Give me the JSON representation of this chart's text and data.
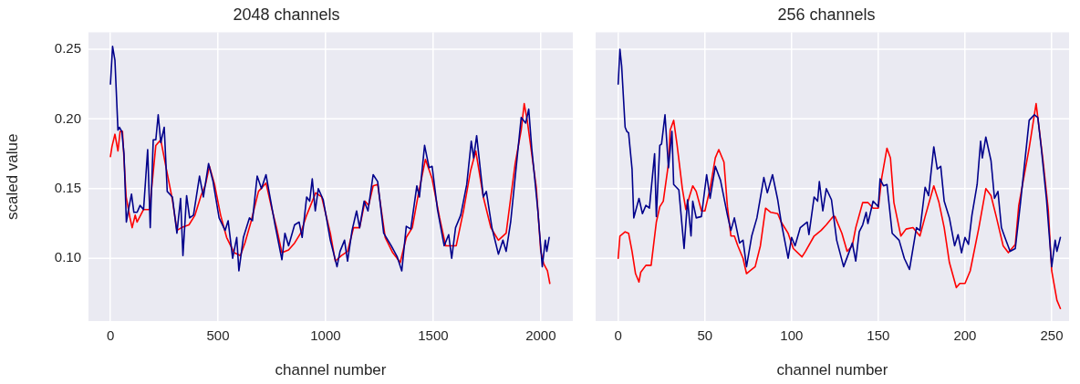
{
  "chart_data": [
    {
      "type": "line",
      "title": "2048 channels",
      "xlabel": "channel number",
      "ylabel": "scaled value",
      "xlim": [
        -102,
        2149
      ],
      "xticks": [
        0,
        500,
        1000,
        1500,
        2000
      ],
      "ylim": [
        0.055,
        0.262
      ],
      "yticks": [
        {
          "value": 0.1,
          "label": "0.10"
        },
        0.15,
        {
          "value": 0.2,
          "label": "0.20"
        },
        0.25
      ],
      "grid": true,
      "series": [
        {
          "color": "#00008b",
          "x": [
            0,
            10,
            21,
            35,
            42,
            53,
            63,
            74,
            84,
            98,
            109,
            124,
            138,
            154,
            173,
            185,
            199,
            211,
            222,
            234,
            250,
            264,
            288,
            309,
            326,
            337,
            354,
            368,
            386,
            414,
            432,
            456,
            477,
            505,
            533,
            547,
            568,
            587,
            597,
            618,
            646,
            660,
            682,
            702,
            723,
            744,
            765,
            797,
            811,
            828,
            856,
            877,
            891,
            912,
            926,
            938,
            952,
            966,
            989,
            1022,
            1053,
            1067,
            1088,
            1102,
            1123,
            1144,
            1158,
            1179,
            1197,
            1221,
            1242,
            1270,
            1305,
            1333,
            1354,
            1375,
            1396,
            1424,
            1436,
            1460,
            1481,
            1495,
            1520,
            1551,
            1572,
            1586,
            1604,
            1628,
            1656,
            1677,
            1688,
            1702,
            1733,
            1747,
            1773,
            1803,
            1824,
            1839,
            1860,
            1909,
            1930,
            1944,
            1958,
            1986,
            2007,
            2021,
            2028,
            2039
          ],
          "values": [
            0.225,
            0.252,
            0.242,
            0.192,
            0.194,
            0.191,
            0.175,
            0.126,
            0.135,
            0.146,
            0.133,
            0.133,
            0.138,
            0.135,
            0.178,
            0.122,
            0.185,
            0.185,
            0.203,
            0.183,
            0.194,
            0.148,
            0.144,
            0.118,
            0.143,
            0.102,
            0.145,
            0.129,
            0.131,
            0.159,
            0.144,
            0.168,
            0.155,
            0.129,
            0.12,
            0.127,
            0.1,
            0.115,
            0.091,
            0.115,
            0.129,
            0.127,
            0.159,
            0.15,
            0.16,
            0.142,
            0.124,
            0.099,
            0.118,
            0.109,
            0.124,
            0.126,
            0.115,
            0.144,
            0.141,
            0.157,
            0.134,
            0.15,
            0.142,
            0.113,
            0.094,
            0.105,
            0.113,
            0.098,
            0.12,
            0.134,
            0.122,
            0.141,
            0.134,
            0.16,
            0.155,
            0.118,
            0.109,
            0.101,
            0.091,
            0.123,
            0.121,
            0.152,
            0.144,
            0.181,
            0.165,
            0.166,
            0.135,
            0.109,
            0.117,
            0.1,
            0.122,
            0.131,
            0.153,
            0.184,
            0.172,
            0.188,
            0.144,
            0.148,
            0.122,
            0.103,
            0.113,
            0.105,
            0.126,
            0.201,
            0.197,
            0.207,
            0.179,
            0.135,
            0.094,
            0.113,
            0.105,
            0.115
          ]
        },
        {
          "color": "#ff0000",
          "x": [
            0,
            7,
            21,
            35,
            45,
            56,
            73,
            91,
            101,
            115,
            124,
            154,
            182,
            211,
            234,
            260,
            288,
            309,
            330,
            365,
            393,
            421,
            442,
            460,
            484,
            512,
            540,
            575,
            604,
            625,
            653,
            688,
            723,
            751,
            772,
            797,
            828,
            856,
            884,
            912,
            954,
            982,
            1022,
            1045,
            1074,
            1102,
            1130,
            1158,
            1183,
            1200,
            1221,
            1242,
            1277,
            1312,
            1347,
            1375,
            1403,
            1431,
            1464,
            1495,
            1530,
            1558,
            1607,
            1642,
            1674,
            1698,
            1733,
            1768,
            1803,
            1839,
            1881,
            1909,
            1923,
            1937,
            1958,
            1979,
            2000,
            2014,
            2031,
            2042
          ],
          "values": [
            0.173,
            0.18,
            0.189,
            0.177,
            0.191,
            0.191,
            0.144,
            0.129,
            0.122,
            0.131,
            0.126,
            0.135,
            0.135,
            0.181,
            0.185,
            0.164,
            0.142,
            0.12,
            0.122,
            0.124,
            0.131,
            0.145,
            0.153,
            0.166,
            0.153,
            0.131,
            0.115,
            0.104,
            0.102,
            0.111,
            0.126,
            0.148,
            0.154,
            0.135,
            0.122,
            0.104,
            0.106,
            0.111,
            0.118,
            0.131,
            0.147,
            0.144,
            0.118,
            0.098,
            0.102,
            0.105,
            0.122,
            0.122,
            0.141,
            0.138,
            0.152,
            0.153,
            0.115,
            0.104,
            0.097,
            0.115,
            0.122,
            0.146,
            0.171,
            0.157,
            0.129,
            0.109,
            0.109,
            0.135,
            0.163,
            0.177,
            0.144,
            0.122,
            0.113,
            0.118,
            0.168,
            0.192,
            0.211,
            0.199,
            0.175,
            0.151,
            0.105,
            0.096,
            0.091,
            0.082
          ]
        }
      ]
    },
    {
      "type": "line",
      "title": "256 channels",
      "xlabel": "channel number",
      "xlim": [
        -13,
        260
      ],
      "xticks": [
        0,
        50,
        100,
        150,
        200,
        250
      ],
      "ylim": [
        0.055,
        0.262
      ],
      "yticks": [
        0.1,
        0.15,
        0.2,
        0.25
      ],
      "grid": true,
      "tick_labels": "x",
      "series": [
        {
          "color": "#00008b",
          "x": [
            0,
            1,
            2,
            4,
            5,
            6,
            8,
            9,
            12,
            14,
            16,
            18,
            21,
            22,
            24,
            25,
            27,
            29,
            31,
            32,
            35,
            38,
            40,
            42,
            43,
            45,
            48,
            51,
            53,
            56,
            59,
            63,
            65,
            67,
            70,
            72,
            74,
            77,
            80,
            84,
            86,
            89,
            92,
            94,
            98,
            100,
            102,
            105,
            109,
            110,
            113,
            115,
            116,
            118,
            120,
            123,
            126,
            130,
            133,
            135,
            137,
            139,
            141,
            143,
            144,
            147,
            150,
            151,
            153,
            155,
            158,
            162,
            165,
            168,
            172,
            174,
            177,
            179,
            182,
            184,
            186,
            188,
            191,
            194,
            196,
            198,
            200,
            202,
            204,
            207,
            209,
            210,
            212,
            215,
            217,
            219,
            221,
            223,
            226,
            229,
            232,
            237,
            240,
            242,
            244,
            247,
            250,
            252,
            253,
            255
          ],
          "values": [
            0.225,
            0.25,
            0.238,
            0.194,
            0.191,
            0.19,
            0.164,
            0.129,
            0.143,
            0.132,
            0.138,
            0.136,
            0.175,
            0.13,
            0.181,
            0.182,
            0.203,
            0.165,
            0.191,
            0.153,
            0.149,
            0.107,
            0.142,
            0.116,
            0.141,
            0.129,
            0.13,
            0.16,
            0.143,
            0.166,
            0.156,
            0.131,
            0.12,
            0.129,
            0.111,
            0.113,
            0.094,
            0.116,
            0.129,
            0.158,
            0.147,
            0.16,
            0.142,
            0.126,
            0.1,
            0.115,
            0.109,
            0.122,
            0.126,
            0.117,
            0.144,
            0.141,
            0.155,
            0.134,
            0.15,
            0.142,
            0.113,
            0.094,
            0.104,
            0.111,
            0.098,
            0.119,
            0.124,
            0.133,
            0.125,
            0.141,
            0.137,
            0.157,
            0.152,
            0.153,
            0.118,
            0.113,
            0.1,
            0.092,
            0.122,
            0.12,
            0.151,
            0.145,
            0.18,
            0.164,
            0.166,
            0.141,
            0.129,
            0.109,
            0.117,
            0.104,
            0.115,
            0.11,
            0.131,
            0.153,
            0.184,
            0.172,
            0.187,
            0.17,
            0.143,
            0.148,
            0.122,
            0.115,
            0.105,
            0.107,
            0.14,
            0.199,
            0.203,
            0.201,
            0.179,
            0.142,
            0.094,
            0.113,
            0.105,
            0.115
          ]
        },
        {
          "color": "#ff0000",
          "x": [
            0,
            1,
            4,
            6,
            8,
            10,
            12,
            13,
            16,
            19,
            22,
            24,
            26,
            29,
            30,
            32,
            34,
            37,
            39,
            41,
            43,
            45,
            48,
            50,
            53,
            56,
            58,
            61,
            63,
            65,
            67,
            69,
            72,
            74,
            76,
            79,
            82,
            85,
            88,
            92,
            94,
            98,
            101,
            106,
            108,
            113,
            117,
            120,
            124,
            125,
            129,
            132,
            135,
            137,
            141,
            144,
            147,
            150,
            152,
            155,
            157,
            159,
            163,
            166,
            170,
            174,
            177,
            182,
            185,
            188,
            191,
            195,
            197,
            200,
            203,
            208,
            212,
            215,
            218,
            222,
            225,
            229,
            231,
            237,
            241,
            242,
            245,
            248,
            250,
            253,
            255
          ],
          "values": [
            0.1,
            0.116,
            0.119,
            0.118,
            0.105,
            0.089,
            0.083,
            0.09,
            0.095,
            0.095,
            0.126,
            0.137,
            0.141,
            0.168,
            0.192,
            0.199,
            0.181,
            0.15,
            0.135,
            0.144,
            0.152,
            0.148,
            0.134,
            0.134,
            0.15,
            0.172,
            0.178,
            0.169,
            0.137,
            0.116,
            0.116,
            0.109,
            0.1,
            0.089,
            0.091,
            0.094,
            0.109,
            0.136,
            0.133,
            0.132,
            0.126,
            0.118,
            0.107,
            0.101,
            0.105,
            0.116,
            0.12,
            0.124,
            0.13,
            0.13,
            0.118,
            0.105,
            0.109,
            0.122,
            0.14,
            0.14,
            0.136,
            0.136,
            0.158,
            0.179,
            0.172,
            0.14,
            0.116,
            0.121,
            0.122,
            0.116,
            0.13,
            0.152,
            0.14,
            0.122,
            0.097,
            0.079,
            0.082,
            0.082,
            0.091,
            0.122,
            0.15,
            0.145,
            0.13,
            0.109,
            0.104,
            0.11,
            0.138,
            0.179,
            0.211,
            0.201,
            0.17,
            0.135,
            0.091,
            0.07,
            0.064
          ]
        }
      ]
    }
  ]
}
